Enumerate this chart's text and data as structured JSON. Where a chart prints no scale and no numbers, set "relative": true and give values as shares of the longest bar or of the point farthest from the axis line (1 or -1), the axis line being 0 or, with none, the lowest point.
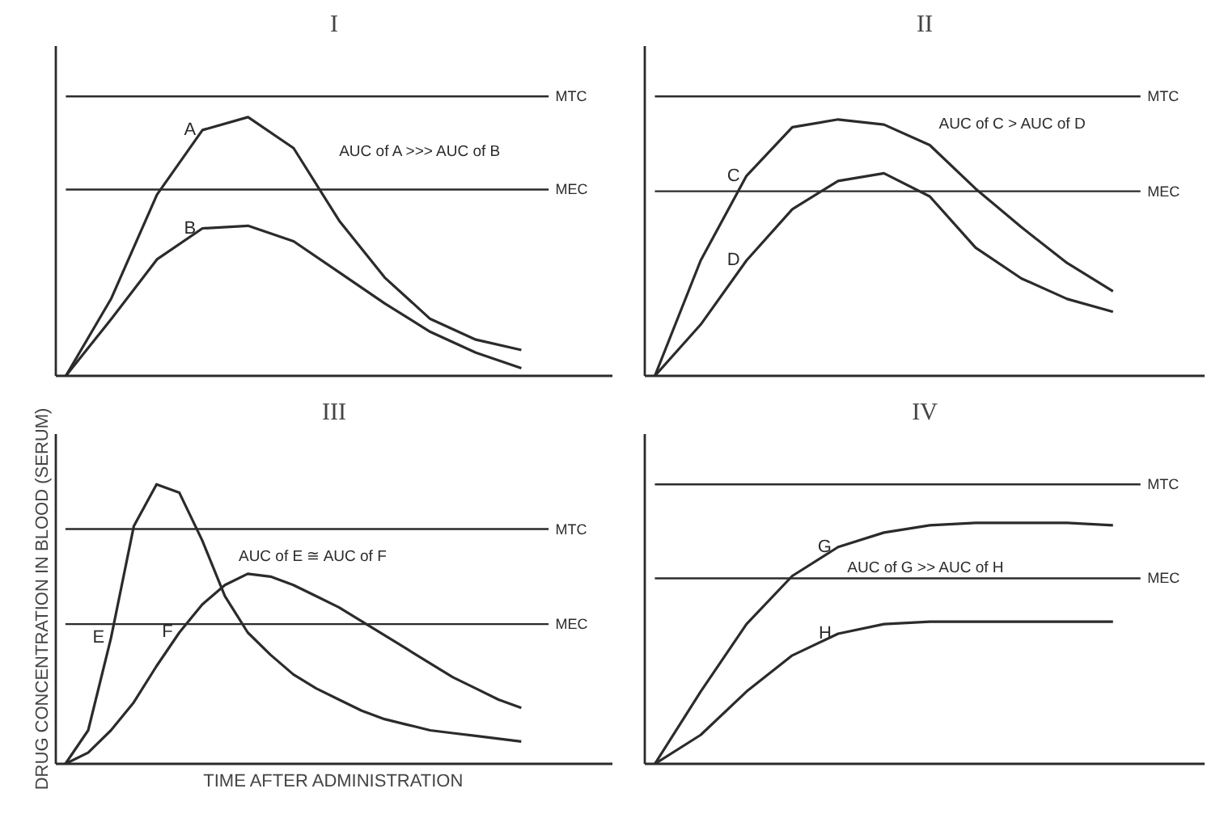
{
  "chart_data": [
    {
      "type": "line",
      "title": "I",
      "relative": true,
      "categories": [
        null,
        null,
        null,
        null,
        null,
        null,
        null,
        null,
        null,
        null,
        null
      ],
      "series": [
        {
          "name": "A",
          "color": "#2b2b2b",
          "values": [
            0,
            0.3,
            0.7,
            0.95,
            1.0,
            0.88,
            0.6,
            0.38,
            0.22,
            0.14,
            0.1
          ]
        },
        {
          "name": "B",
          "color": "#2b2b2b",
          "values": [
            0,
            0.22,
            0.45,
            0.57,
            0.58,
            0.52,
            0.4,
            0.28,
            0.17,
            0.09,
            0.03
          ]
        }
      ],
      "ref_lines": [
        {
          "axis": "y",
          "value": 1.08,
          "label": "MTC",
          "color": "#2b2b2b"
        },
        {
          "axis": "y",
          "value": 0.72,
          "label": "MEC",
          "color": "#2b2b2b"
        }
      ],
      "annotations": [
        "AUC of A >>> AUC of B"
      ],
      "legend": false,
      "marker": "none",
      "line_style": "solid"
    },
    {
      "type": "line",
      "title": "II",
      "relative": true,
      "categories": [
        null,
        null,
        null,
        null,
        null,
        null,
        null,
        null,
        null,
        null,
        null
      ],
      "series": [
        {
          "name": "C",
          "color": "#2b2b2b",
          "values": [
            0,
            0.45,
            0.78,
            0.97,
            1.0,
            0.98,
            0.9,
            0.73,
            0.58,
            0.44,
            0.33
          ]
        },
        {
          "name": "D",
          "color": "#2b2b2b",
          "values": [
            0,
            0.2,
            0.45,
            0.65,
            0.76,
            0.79,
            0.7,
            0.5,
            0.38,
            0.3,
            0.25
          ]
        }
      ],
      "ref_lines": [
        {
          "axis": "y",
          "value": 1.09,
          "label": "MTC",
          "color": "#2b2b2b"
        },
        {
          "axis": "y",
          "value": 0.72,
          "label": "MEC",
          "color": "#2b2b2b"
        }
      ],
      "annotations": [
        "AUC of C > AUC of D"
      ],
      "legend": false,
      "marker": "none",
      "line_style": "solid"
    },
    {
      "type": "line",
      "title": "III",
      "relative": true,
      "ylabel": "DRUG CONCENTRATION IN BLOOD (SERUM)",
      "xlabel": "TIME AFTER ADMINISTRATION",
      "categories": [
        null,
        null,
        null,
        null,
        null,
        null,
        null,
        null,
        null,
        null,
        null,
        null,
        null,
        null,
        null,
        null,
        null,
        null,
        null,
        null,
        null
      ],
      "series": [
        {
          "name": "E",
          "color": "#2b2b2b",
          "values": [
            0,
            0.12,
            0.45,
            0.85,
            1.0,
            0.97,
            0.8,
            0.6,
            0.47,
            0.39,
            0.32,
            0.27,
            0.23,
            0.19,
            0.16,
            0.14,
            0.12,
            0.11,
            0.1,
            0.09,
            0.08
          ]
        },
        {
          "name": "F",
          "color": "#2b2b2b",
          "values": [
            0,
            0.04,
            0.12,
            0.22,
            0.35,
            0.47,
            0.57,
            0.64,
            0.68,
            0.67,
            0.64,
            0.6,
            0.56,
            0.51,
            0.46,
            0.41,
            0.36,
            0.31,
            0.27,
            0.23,
            0.2
          ]
        }
      ],
      "ref_lines": [
        {
          "axis": "y",
          "value": 0.84,
          "label": "MTC",
          "color": "#2b2b2b"
        },
        {
          "axis": "y",
          "value": 0.5,
          "label": "MEC",
          "color": "#2b2b2b"
        }
      ],
      "annotations": [
        "AUC of E ≅ AUC of F"
      ],
      "legend": false,
      "marker": "none",
      "line_style": "solid"
    },
    {
      "type": "line",
      "title": "IV",
      "relative": true,
      "categories": [
        null,
        null,
        null,
        null,
        null,
        null,
        null,
        null,
        null,
        null,
        null
      ],
      "series": [
        {
          "name": "G",
          "color": "#2b2b2b",
          "values": [
            0,
            0.3,
            0.58,
            0.78,
            0.9,
            0.96,
            0.99,
            1.0,
            1.0,
            1.0,
            0.99
          ]
        },
        {
          "name": "H",
          "color": "#2b2b2b",
          "values": [
            0,
            0.12,
            0.3,
            0.45,
            0.54,
            0.58,
            0.59,
            0.59,
            0.59,
            0.59,
            0.59
          ]
        }
      ],
      "ref_lines": [
        {
          "axis": "y",
          "value": 1.16,
          "label": "MTC",
          "color": "#2b2b2b"
        },
        {
          "axis": "y",
          "value": 0.77,
          "label": "MEC",
          "color": "#2b2b2b"
        }
      ],
      "annotations": [
        "AUC of G >> AUC of H"
      ],
      "legend": false,
      "marker": "none",
      "line_style": "solid"
    }
  ]
}
